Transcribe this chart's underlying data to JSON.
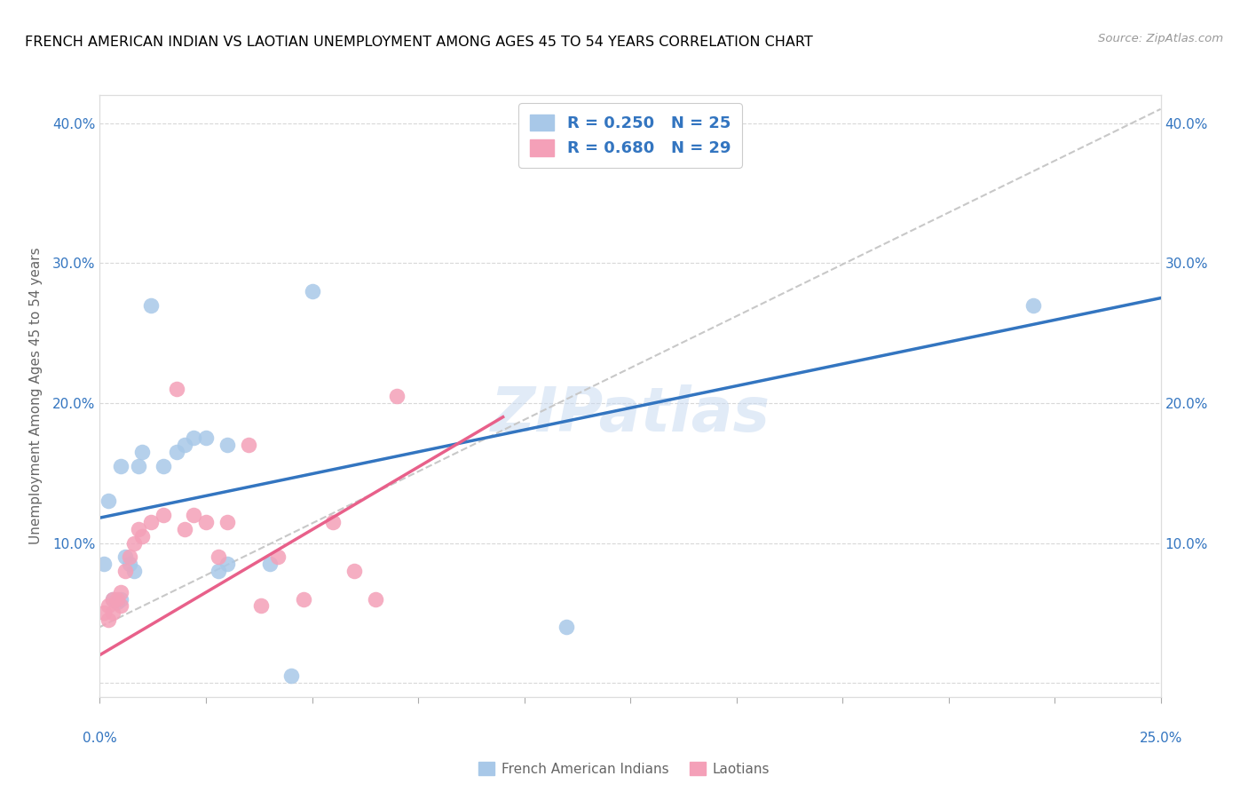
{
  "title": "FRENCH AMERICAN INDIAN VS LAOTIAN UNEMPLOYMENT AMONG AGES 45 TO 54 YEARS CORRELATION CHART",
  "source": "Source: ZipAtlas.com",
  "ylabel": "Unemployment Among Ages 45 to 54 years",
  "xlim": [
    0.0,
    0.25
  ],
  "ylim": [
    -0.01,
    0.42
  ],
  "watermark": "ZIPatlas",
  "legend_r1": "R = 0.250",
  "legend_n1": "N = 25",
  "legend_r2": "R = 0.680",
  "legend_n2": "N = 29",
  "legend_label1": "French American Indians",
  "legend_label2": "Laotians",
  "blue_scatter_color": "#a8c8e8",
  "pink_scatter_color": "#f4a0b8",
  "blue_line_color": "#3375c0",
  "pink_line_color": "#e8608a",
  "diag_line_color": "#c8c8c8",
  "text_color": "#3375c0",
  "scatter_blue_x": [
    0.001,
    0.002,
    0.003,
    0.004,
    0.005,
    0.006,
    0.007,
    0.008,
    0.009,
    0.01,
    0.012,
    0.015,
    0.018,
    0.02,
    0.022,
    0.025,
    0.028,
    0.03,
    0.04,
    0.045,
    0.05,
    0.11,
    0.22,
    0.03,
    0.005
  ],
  "scatter_blue_y": [
    0.085,
    0.13,
    0.06,
    0.058,
    0.06,
    0.09,
    0.085,
    0.08,
    0.155,
    0.165,
    0.27,
    0.155,
    0.165,
    0.17,
    0.175,
    0.175,
    0.08,
    0.17,
    0.085,
    0.005,
    0.28,
    0.04,
    0.27,
    0.085,
    0.155
  ],
  "scatter_pink_x": [
    0.001,
    0.002,
    0.002,
    0.003,
    0.003,
    0.004,
    0.005,
    0.005,
    0.006,
    0.007,
    0.008,
    0.009,
    0.01,
    0.012,
    0.015,
    0.018,
    0.02,
    0.022,
    0.025,
    0.028,
    0.03,
    0.035,
    0.038,
    0.042,
    0.048,
    0.055,
    0.06,
    0.065,
    0.07
  ],
  "scatter_pink_y": [
    0.05,
    0.045,
    0.055,
    0.05,
    0.06,
    0.06,
    0.065,
    0.055,
    0.08,
    0.09,
    0.1,
    0.11,
    0.105,
    0.115,
    0.12,
    0.21,
    0.11,
    0.12,
    0.115,
    0.09,
    0.115,
    0.17,
    0.055,
    0.09,
    0.06,
    0.115,
    0.08,
    0.06,
    0.205
  ],
  "blue_line_x": [
    0.0,
    0.25
  ],
  "blue_line_y": [
    0.118,
    0.275
  ],
  "pink_line_x": [
    0.0,
    0.095
  ],
  "pink_line_y": [
    0.02,
    0.19
  ],
  "diag_line_x": [
    0.0,
    0.25
  ],
  "diag_line_y": [
    0.04,
    0.41
  ]
}
